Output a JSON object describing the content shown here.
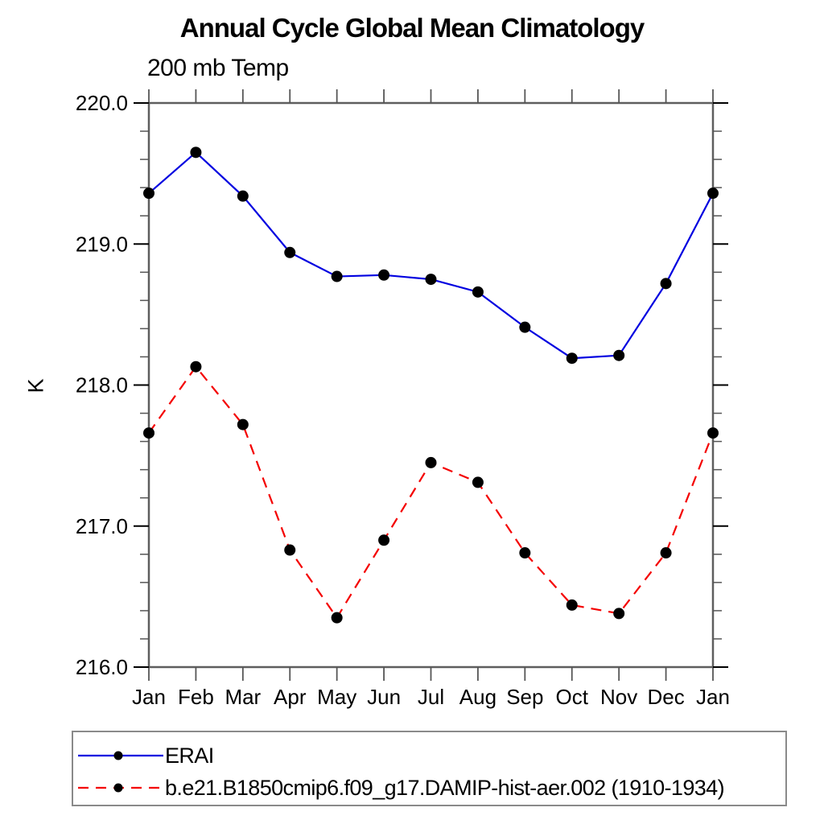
{
  "title": "Annual Cycle Global Mean Climatology",
  "subtitle": "200 mb Temp",
  "colors": {
    "background": "#ffffff",
    "frame": "#5e5e5e",
    "major_tick": "#000000",
    "minor_tick": "#565656",
    "marker": "#000000",
    "legend_border": "#8a8a8a",
    "series_1": "#0000e0",
    "series_2": "#f40000"
  },
  "chart_data": {
    "type": "line",
    "title": "Annual Cycle Global Mean Climatology",
    "subtitle": "200 mb Temp",
    "xlabel": "",
    "ylabel": "K",
    "ylim": [
      216.0,
      220.0
    ],
    "ytick_major": [
      216.0,
      217.0,
      218.0,
      219.0,
      220.0
    ],
    "ytick_major_labels": [
      "216.0",
      "217.0",
      "218.0",
      "219.0",
      "220.0"
    ],
    "ytick_minor_step": 0.2,
    "grid": false,
    "legend_position": "bottom",
    "categories": [
      "Jan",
      "Feb",
      "Mar",
      "Apr",
      "May",
      "Jun",
      "Jul",
      "Aug",
      "Sep",
      "Oct",
      "Nov",
      "Dec",
      "Jan"
    ],
    "series": [
      {
        "name": "ERAI",
        "color": "#0000e0",
        "style": "solid",
        "marker": "circle",
        "values": [
          219.36,
          219.65,
          219.34,
          218.94,
          218.77,
          218.78,
          218.75,
          218.66,
          218.41,
          218.19,
          218.21,
          218.72,
          219.36
        ]
      },
      {
        "name": "b.e21.B1850cmip6.f09_g17.DAMIP-hist-aer.002 (1910-1934)",
        "color": "#f40000",
        "style": "dashed",
        "marker": "circle",
        "values": [
          217.66,
          218.13,
          217.72,
          216.83,
          216.35,
          216.9,
          217.45,
          217.31,
          216.81,
          216.44,
          216.38,
          216.81,
          217.66
        ]
      }
    ]
  }
}
